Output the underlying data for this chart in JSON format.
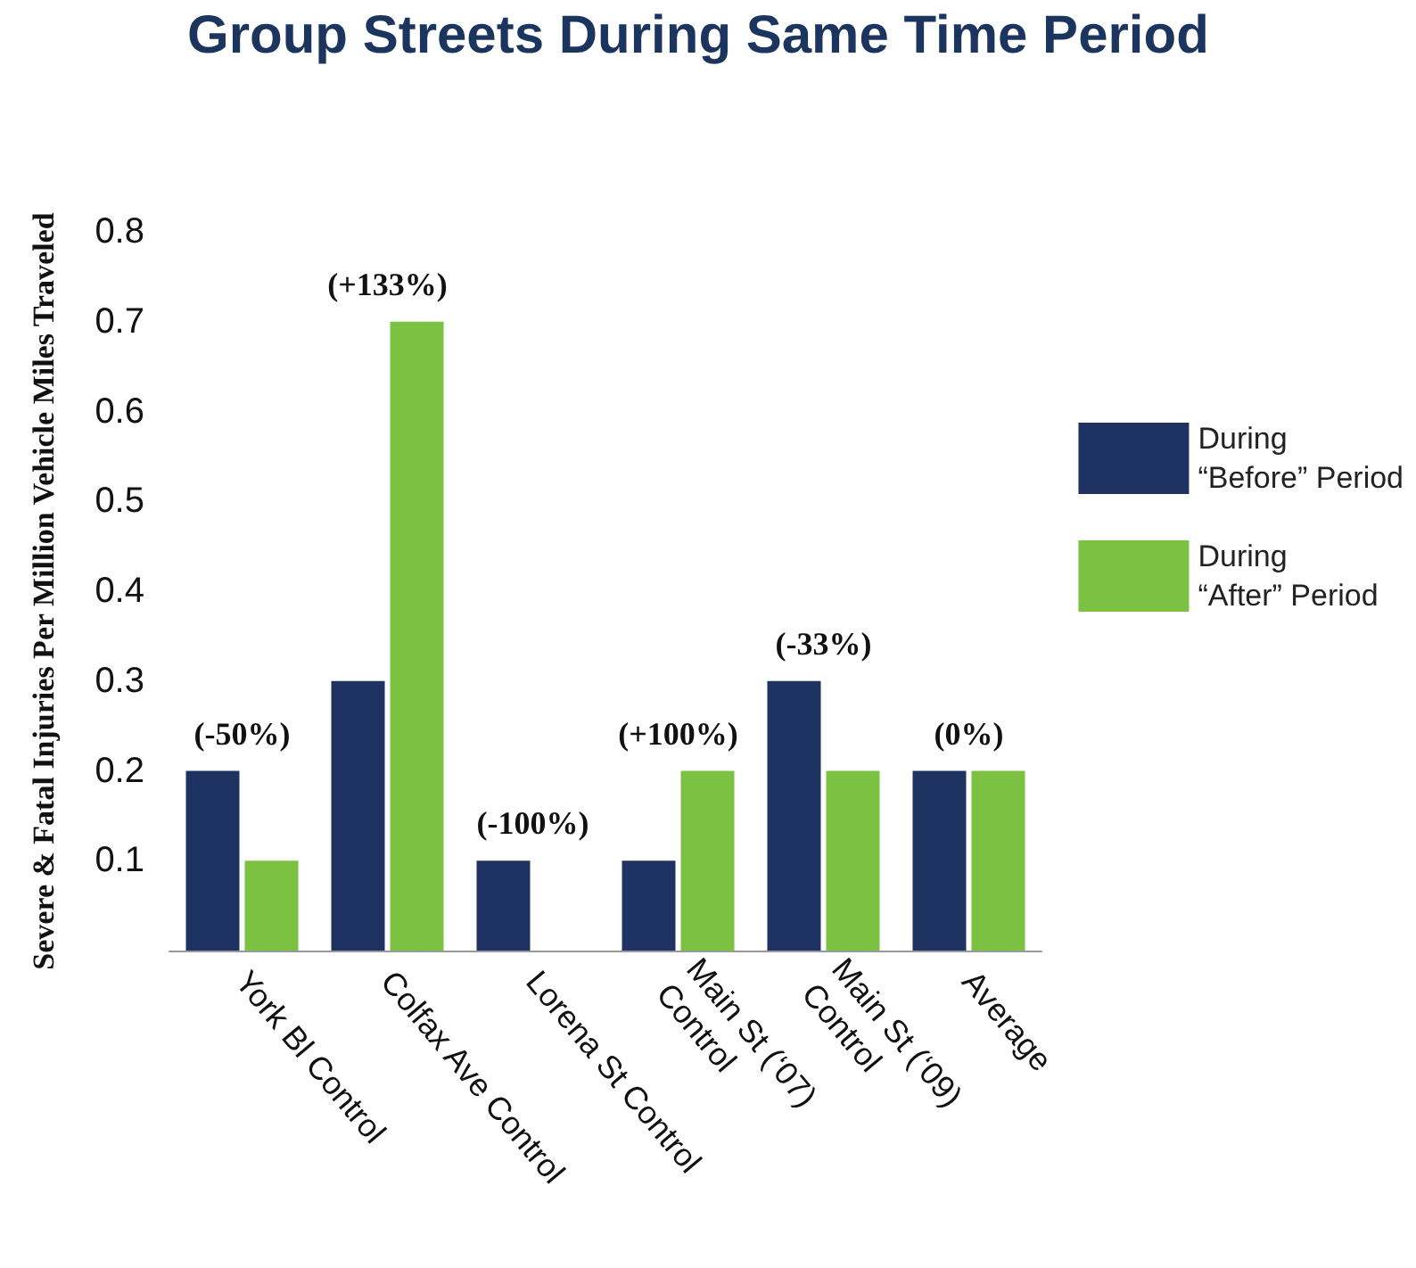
{
  "chart_data": {
    "type": "bar",
    "title": "Group Streets During Same Time Period",
    "ylabel": "Severe & Fatal Injuries Per Million Vehicle Miles Traveled",
    "categories": [
      "York Bl Control",
      "Colfax Ave Control",
      "Lorena St Control",
      "Main St (‘07)\nControl",
      "Main St (‘09)\nControl",
      "Average"
    ],
    "series": [
      {
        "name": "During\n“Before” Period",
        "color": "#1f3363",
        "values": [
          0.2,
          0.3,
          0.1,
          0.1,
          0.3,
          0.2
        ]
      },
      {
        "name": "During\n“After” Period",
        "color": "#7cc242",
        "values": [
          0.1,
          0.7,
          0,
          0.2,
          0.2,
          0.2
        ]
      }
    ],
    "ylim": [
      0,
      0.8
    ],
    "yticks": [
      0.1,
      0.2,
      0.3,
      0.4,
      0.5,
      0.6,
      0.7,
      0.8
    ],
    "grid": false,
    "legend": "right",
    "annotations": [
      {
        "text": "(-50%)",
        "x": "York Bl Control",
        "y": 0.2
      },
      {
        "text": "(+133%)",
        "x": "Colfax Ave Control",
        "y": 0.7
      },
      {
        "text": "(-100%)",
        "x": "Lorena St Control",
        "y": 0.1
      },
      {
        "text": "(+100%)",
        "x": "Main St (‘07)\nControl",
        "y": 0.2
      },
      {
        "text": "(-33%)",
        "x": "Main St (‘09)\nControl",
        "y": 0.3
      },
      {
        "text": "(0%)",
        "x": "Average",
        "y": 0.2
      }
    ]
  }
}
